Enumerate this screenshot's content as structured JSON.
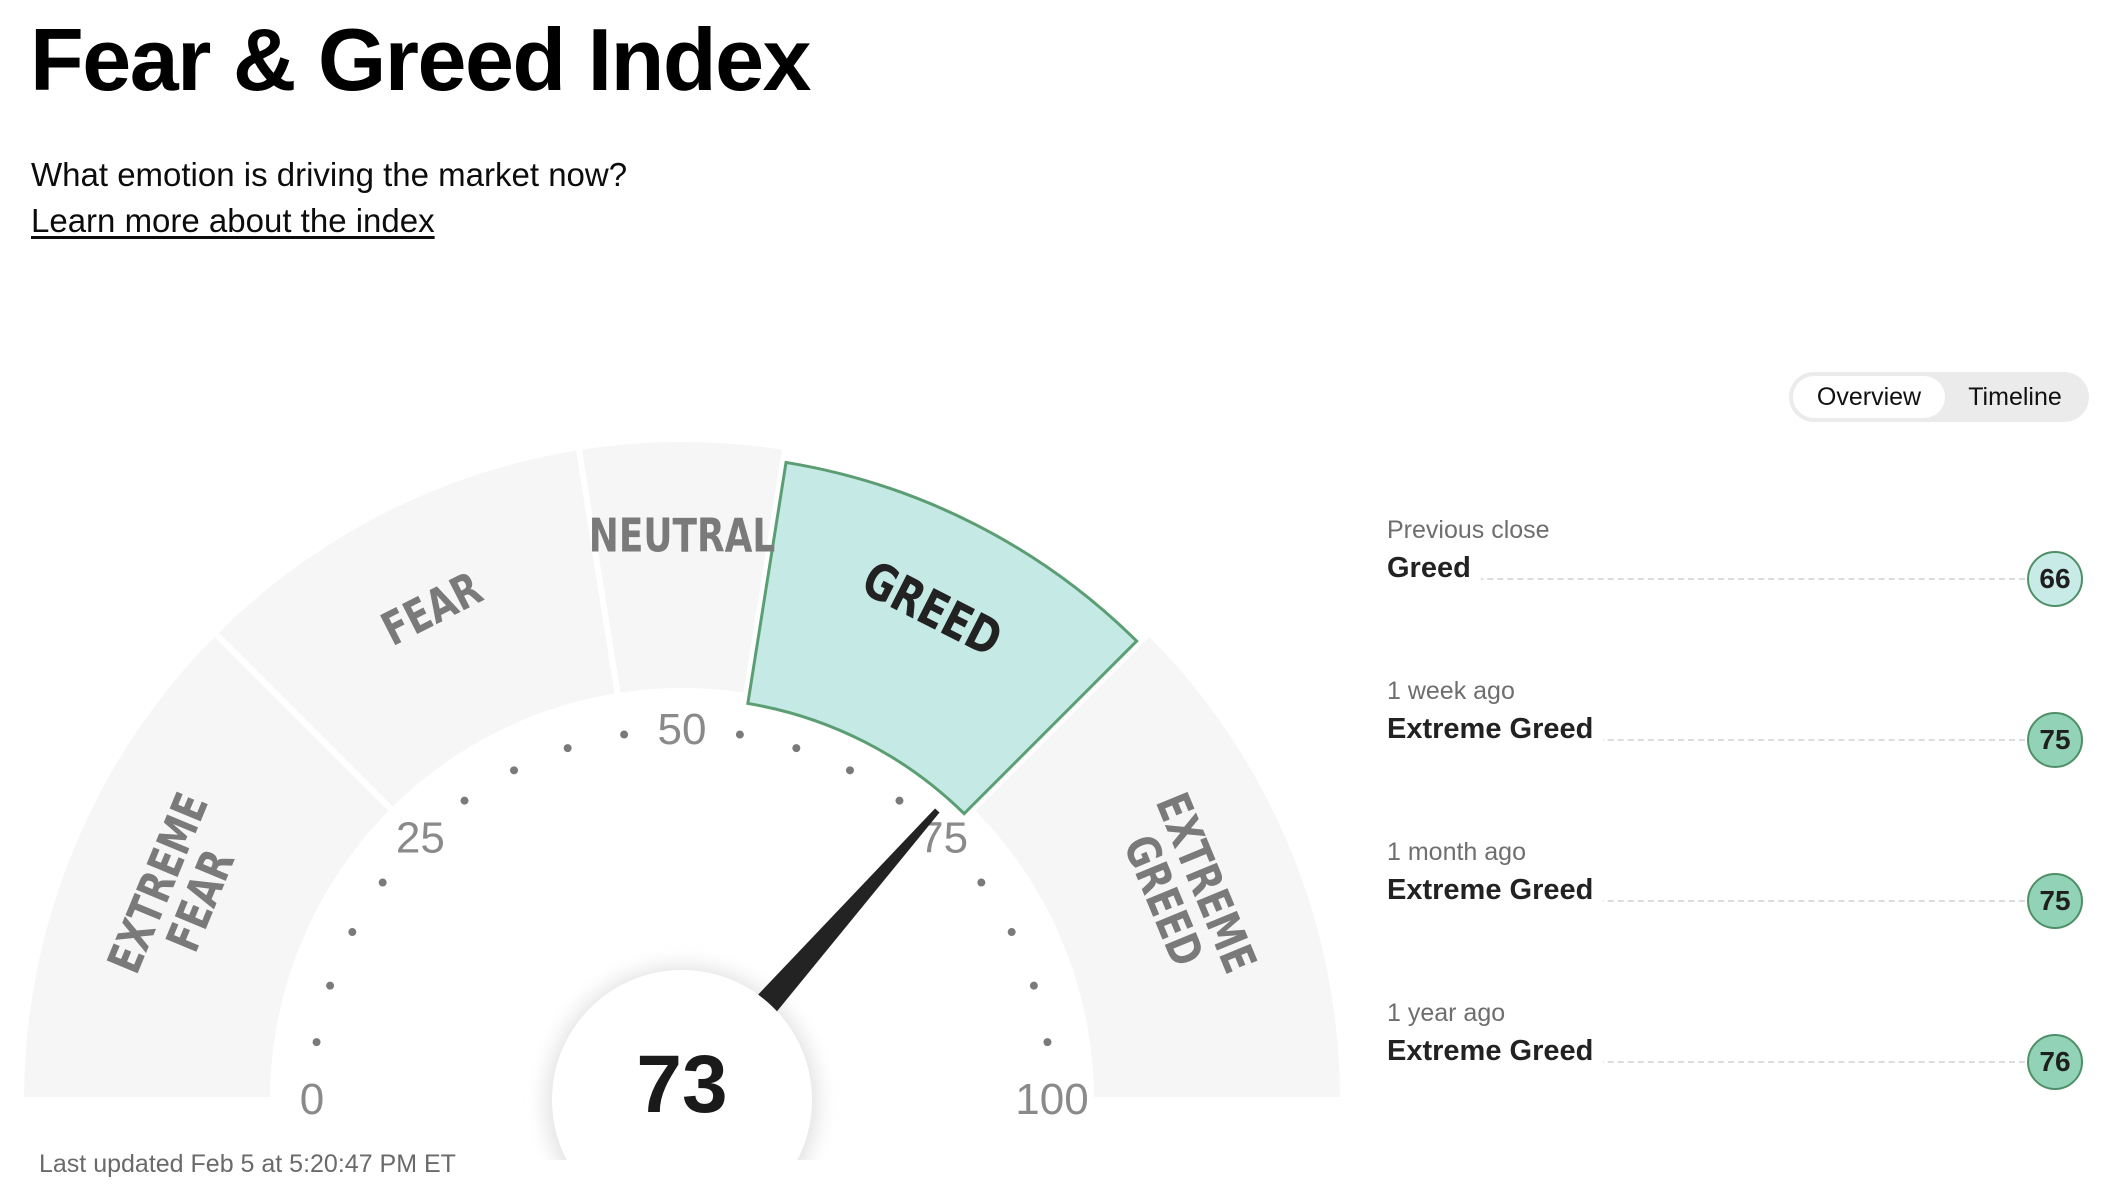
{
  "page": {
    "title": "Fear & Greed Index",
    "subtitle": "What emotion is driving the market now?",
    "learn_more": "Learn more about the index",
    "last_updated": "Last updated Feb 5 at 5:20:47 PM ET"
  },
  "gauge": {
    "score": 73,
    "score_text": "73",
    "active_zone": "greed",
    "zones": [
      {
        "id": "extreme-fear",
        "lines": [
          "EXTREME",
          "FEAR"
        ],
        "from": 0,
        "to": 25
      },
      {
        "id": "fear",
        "lines": [
          "FEAR"
        ],
        "from": 25,
        "to": 45
      },
      {
        "id": "neutral",
        "lines": [
          "NEUTRAL"
        ],
        "from": 45,
        "to": 55
      },
      {
        "id": "greed",
        "lines": [
          "GREED"
        ],
        "from": 55,
        "to": 75
      },
      {
        "id": "extreme-greed",
        "lines": [
          "EXTREME",
          "GREED"
        ],
        "from": 75,
        "to": 100
      }
    ],
    "tick_labels": [
      "0",
      "25",
      "50",
      "75",
      "100"
    ],
    "colors": {
      "zone": "#f6f6f6",
      "active_fill": "#c5eae6",
      "active_stroke": "#5c9e74",
      "needle": "#232323",
      "dot": "#7a7a7a"
    }
  },
  "view_toggle": {
    "options": [
      "Overview",
      "Timeline"
    ],
    "selected": "Overview"
  },
  "history": [
    {
      "period": "Previous close",
      "rating": "Greed",
      "value": "66",
      "badge_color": "#c8ebe7"
    },
    {
      "period": "1 week ago",
      "rating": "Extreme Greed",
      "value": "75",
      "badge_color": "#92d3b7"
    },
    {
      "period": "1 month ago",
      "rating": "Extreme Greed",
      "value": "75",
      "badge_color": "#92d3b7"
    },
    {
      "period": "1 year ago",
      "rating": "Extreme Greed",
      "value": "76",
      "badge_color": "#92d3b7"
    }
  ]
}
